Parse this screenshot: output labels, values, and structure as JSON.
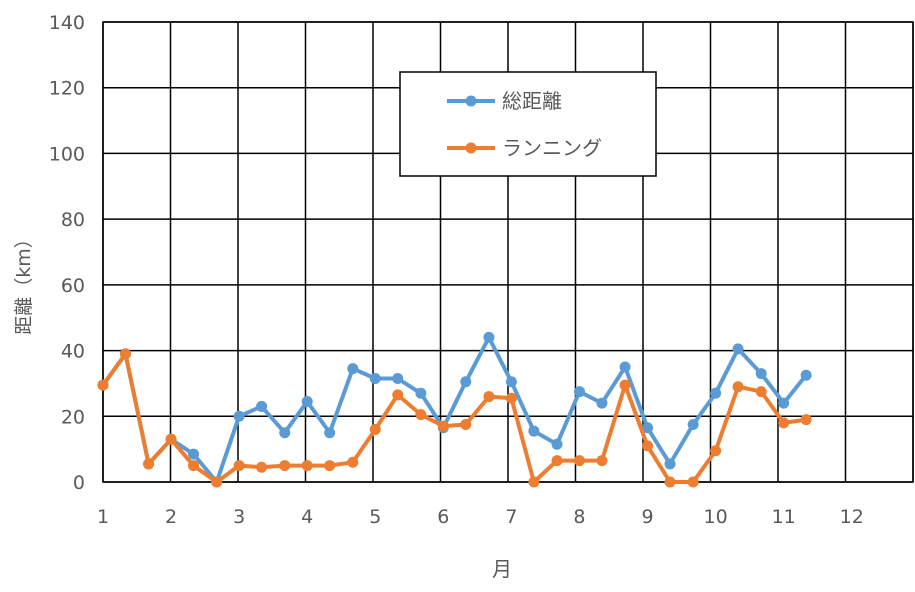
{
  "chart_data": {
    "type": "line",
    "title": "",
    "xlabel": "月",
    "ylabel": "距離（km）",
    "xlim": [
      1,
      12.9
    ],
    "ylim": [
      0,
      140
    ],
    "x_ticks": [
      "1",
      "2",
      "3",
      "4",
      "5",
      "6",
      "7",
      "8",
      "9",
      "10",
      "11",
      "12"
    ],
    "y_ticks": [
      "0",
      "20",
      "40",
      "60",
      "80",
      "100",
      "120",
      "140"
    ],
    "grid": true,
    "legend_position": "top-center",
    "series": [
      {
        "name": "総距離",
        "color": "#5B9BD5",
        "points": [
          [
            1.0,
            29.5
          ],
          [
            1.33,
            39.0
          ],
          [
            1.67,
            5.5
          ],
          [
            2.0,
            13.0
          ],
          [
            2.33,
            8.5
          ],
          [
            2.67,
            0.0
          ],
          [
            3.0,
            20.0
          ],
          [
            3.33,
            23.0
          ],
          [
            3.67,
            15.0
          ],
          [
            4.0,
            24.5
          ],
          [
            4.33,
            15.0
          ],
          [
            4.67,
            34.5
          ],
          [
            5.0,
            31.5
          ],
          [
            5.33,
            31.5
          ],
          [
            5.67,
            27.0
          ],
          [
            6.0,
            16.5
          ],
          [
            6.33,
            30.5
          ],
          [
            6.67,
            44.0
          ],
          [
            7.0,
            30.5
          ],
          [
            7.33,
            15.5
          ],
          [
            7.67,
            11.5
          ],
          [
            8.0,
            27.5
          ],
          [
            8.33,
            24.0
          ],
          [
            8.67,
            35.0
          ],
          [
            9.0,
            16.5
          ],
          [
            9.33,
            5.5
          ],
          [
            9.67,
            17.5
          ],
          [
            10.0,
            27.0
          ],
          [
            10.33,
            40.5
          ],
          [
            10.67,
            33.0
          ],
          [
            11.0,
            24.0
          ],
          [
            11.33,
            32.5
          ]
        ]
      },
      {
        "name": "ランニング",
        "color": "#ED7D31",
        "points": [
          [
            1.0,
            29.5
          ],
          [
            1.33,
            39.0
          ],
          [
            1.67,
            5.5
          ],
          [
            2.0,
            13.0
          ],
          [
            2.33,
            5.0
          ],
          [
            2.67,
            0.0
          ],
          [
            3.0,
            5.0
          ],
          [
            3.33,
            4.5
          ],
          [
            3.67,
            5.0
          ],
          [
            4.0,
            5.0
          ],
          [
            4.33,
            5.0
          ],
          [
            4.67,
            6.0
          ],
          [
            5.0,
            16.0
          ],
          [
            5.33,
            26.5
          ],
          [
            5.67,
            20.5
          ],
          [
            6.0,
            17.0
          ],
          [
            6.33,
            17.5
          ],
          [
            6.67,
            26.0
          ],
          [
            7.0,
            25.5
          ],
          [
            7.33,
            0.0
          ],
          [
            7.67,
            6.5
          ],
          [
            8.0,
            6.5
          ],
          [
            8.33,
            6.5
          ],
          [
            8.67,
            29.5
          ],
          [
            9.0,
            11.0
          ],
          [
            9.33,
            0.0
          ],
          [
            9.67,
            0.0
          ],
          [
            10.0,
            9.5
          ],
          [
            10.33,
            29.0
          ],
          [
            10.67,
            27.5
          ],
          [
            11.0,
            18.0
          ],
          [
            11.33,
            19.0
          ]
        ]
      }
    ]
  }
}
